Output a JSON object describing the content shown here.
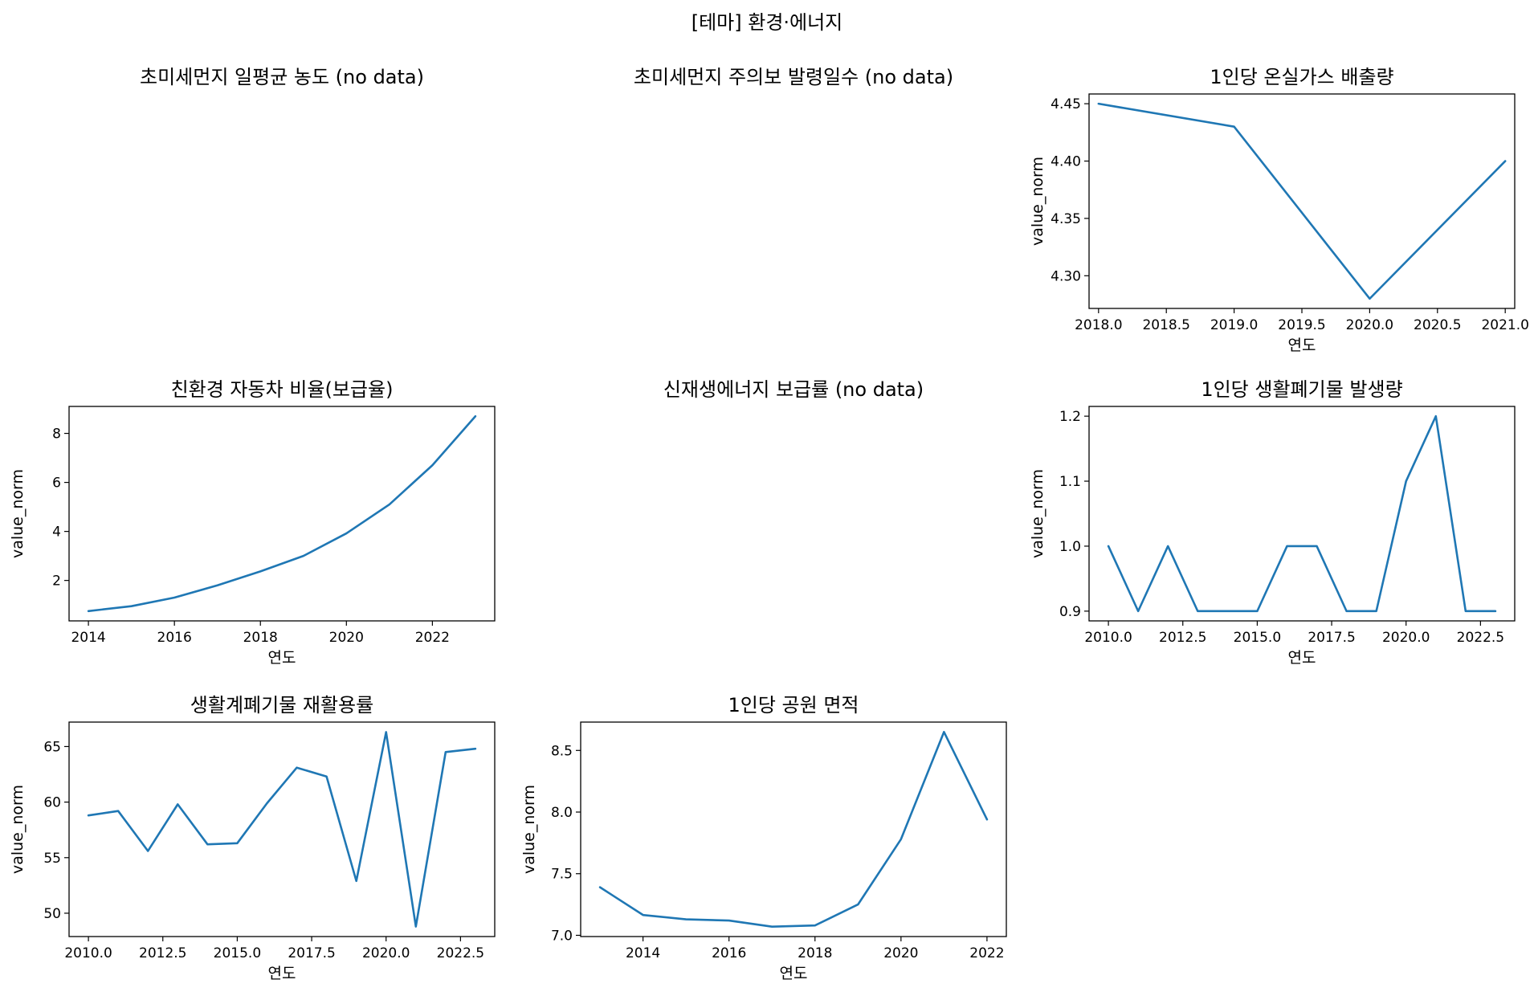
{
  "figure": {
    "title": "[테마] 환경·에너지"
  },
  "chart_data": [
    {
      "type": "line",
      "title": "초미세먼지 일평균 농도 (no data)",
      "empty": true
    },
    {
      "type": "line",
      "title": "초미세먼지 주의보 발령일수 (no data)",
      "empty": true
    },
    {
      "type": "line",
      "title": "1인당 온실가스 배출량",
      "xlabel": "연도",
      "ylabel": "value_norm",
      "x": [
        2018,
        2019,
        2020,
        2021
      ],
      "series": [
        {
          "values": [
            4.45,
            4.43,
            4.28,
            4.4
          ]
        }
      ],
      "xlim": [
        2017.93,
        2021.07
      ],
      "ylim": [
        4.2715,
        4.4585
      ],
      "xticks": [
        2018.0,
        2018.5,
        2019.0,
        2019.5,
        2020.0,
        2020.5,
        2021.0
      ],
      "xtick_labels": [
        "2018.0",
        "2018.5",
        "2019.0",
        "2019.5",
        "2020.0",
        "2020.5",
        "2021.0"
      ],
      "yticks": [
        4.3,
        4.35,
        4.4,
        4.45
      ],
      "ytick_labels": [
        "4.30",
        "4.35",
        "4.40",
        "4.45"
      ],
      "color": "#1f77b4",
      "grid": false
    },
    {
      "type": "line",
      "title": "친환경 자동차 비율(보급율)",
      "xlabel": "연도",
      "ylabel": "value_norm",
      "x": [
        2014,
        2015,
        2016,
        2017,
        2018,
        2019,
        2020,
        2021,
        2022,
        2023
      ],
      "series": [
        {
          "values": [
            0.75,
            0.95,
            1.3,
            1.8,
            2.37,
            3.0,
            3.92,
            5.1,
            6.7,
            8.7
          ]
        }
      ],
      "xlim": [
        2013.55,
        2023.45
      ],
      "ylim": [
        0.35,
        9.1
      ],
      "xticks": [
        2014,
        2016,
        2018,
        2020,
        2022
      ],
      "xtick_labels": [
        "2014",
        "2016",
        "2018",
        "2020",
        "2022"
      ],
      "yticks": [
        2,
        4,
        6,
        8
      ],
      "ytick_labels": [
        "2",
        "4",
        "6",
        "8"
      ],
      "color": "#1f77b4",
      "grid": false
    },
    {
      "type": "line",
      "title": "신재생에너지 보급률 (no data)",
      "empty": true
    },
    {
      "type": "line",
      "title": "1인당 생활폐기물 발생량",
      "xlabel": "연도",
      "ylabel": "value_norm",
      "x": [
        2010,
        2011,
        2012,
        2013,
        2014,
        2015,
        2016,
        2017,
        2018,
        2019,
        2020,
        2021,
        2022,
        2023
      ],
      "series": [
        {
          "values": [
            1.0,
            0.9,
            1.0,
            0.9,
            0.9,
            0.9,
            1.0,
            1.0,
            0.9,
            0.9,
            1.1,
            1.2,
            0.9,
            0.9
          ]
        }
      ],
      "xlim": [
        2009.35,
        2023.65
      ],
      "ylim": [
        0.885,
        1.215
      ],
      "xticks": [
        2010.0,
        2012.5,
        2015.0,
        2017.5,
        2020.0,
        2022.5
      ],
      "xtick_labels": [
        "2010.0",
        "2012.5",
        "2015.0",
        "2017.5",
        "2020.0",
        "2022.5"
      ],
      "yticks": [
        0.9,
        1.0,
        1.1,
        1.2
      ],
      "ytick_labels": [
        "0.9",
        "1.0",
        "1.1",
        "1.2"
      ],
      "color": "#1f77b4",
      "grid": false
    },
    {
      "type": "line",
      "title": "생활계폐기물 재활용률",
      "xlabel": "연도",
      "ylabel": "value_norm",
      "x": [
        2010,
        2011,
        2012,
        2013,
        2014,
        2015,
        2016,
        2017,
        2018,
        2019,
        2020,
        2021,
        2022,
        2023
      ],
      "series": [
        {
          "values": [
            58.8,
            59.2,
            55.6,
            59.8,
            56.2,
            56.3,
            59.9,
            63.1,
            62.3,
            52.9,
            66.3,
            48.8,
            64.5,
            64.8
          ]
        }
      ],
      "xlim": [
        2009.35,
        2023.65
      ],
      "ylim": [
        47.9,
        67.2
      ],
      "xticks": [
        2010.0,
        2012.5,
        2015.0,
        2017.5,
        2020.0,
        2022.5
      ],
      "xtick_labels": [
        "2010.0",
        "2012.5",
        "2015.0",
        "2017.5",
        "2020.0",
        "2022.5"
      ],
      "yticks": [
        50,
        55,
        60,
        65
      ],
      "ytick_labels": [
        "50",
        "55",
        "60",
        "65"
      ],
      "color": "#1f77b4",
      "grid": false
    },
    {
      "type": "line",
      "title": "1인당 공원 면적",
      "xlabel": "연도",
      "ylabel": "value_norm",
      "x": [
        2013,
        2014,
        2015,
        2016,
        2017,
        2018,
        2019,
        2020,
        2021,
        2022
      ],
      "series": [
        {
          "values": [
            7.39,
            7.165,
            7.13,
            7.12,
            7.07,
            7.08,
            7.25,
            7.78,
            8.65,
            7.94
          ]
        }
      ],
      "xlim": [
        2012.55,
        2022.45
      ],
      "ylim": [
        6.99,
        8.73
      ],
      "xticks": [
        2014,
        2016,
        2018,
        2020,
        2022
      ],
      "xtick_labels": [
        "2014",
        "2016",
        "2018",
        "2020",
        "2022"
      ],
      "yticks": [
        7.0,
        7.5,
        8.0,
        8.5
      ],
      "ytick_labels": [
        "7.0",
        "7.5",
        "8.0",
        "8.5"
      ],
      "color": "#1f77b4",
      "grid": false
    }
  ]
}
